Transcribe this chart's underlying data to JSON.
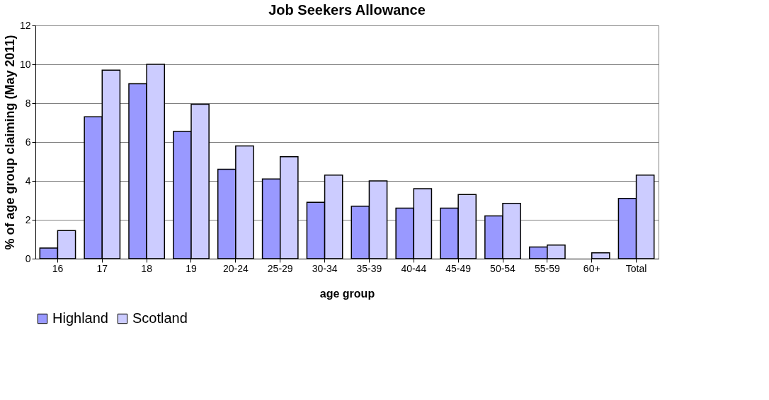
{
  "chart_data": {
    "type": "bar",
    "title": "Job Seekers Allowance",
    "xlabel": "age group",
    "ylabel": "% of age group claiming (May 2011)",
    "categories": [
      "16",
      "17",
      "18",
      "19",
      "20-24",
      "25-29",
      "30-34",
      "35-39",
      "40-44",
      "45-49",
      "50-54",
      "55-59",
      "60+",
      "Total"
    ],
    "series": [
      {
        "name": "Highland",
        "color": "#9999ff",
        "values": [
          0.55,
          7.3,
          9.0,
          6.55,
          4.6,
          4.1,
          2.9,
          2.7,
          2.6,
          2.6,
          2.2,
          0.6,
          null,
          3.1
        ]
      },
      {
        "name": "Scotland",
        "color": "#ccccff",
        "values": [
          1.45,
          9.7,
          10.0,
          7.95,
          5.8,
          5.25,
          4.3,
          4.0,
          3.6,
          3.3,
          2.85,
          0.7,
          0.3,
          4.3
        ]
      }
    ],
    "ylim": [
      0,
      12
    ],
    "yticks": [
      0,
      2,
      4,
      6,
      8,
      10,
      12
    ],
    "grid": "y",
    "legend": "bottom"
  }
}
